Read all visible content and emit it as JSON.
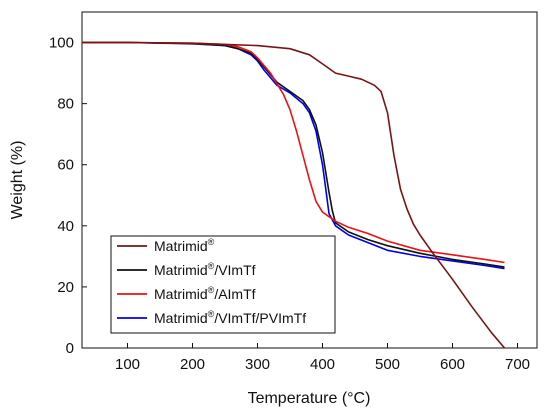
{
  "chart_data": {
    "type": "line",
    "xlabel": "Temperature (°C)",
    "ylabel": "Weight (%)",
    "xlim": [
      30,
      730
    ],
    "ylim": [
      0,
      110
    ],
    "xticks": [
      100,
      200,
      300,
      400,
      500,
      600,
      700
    ],
    "yticks": [
      0,
      20,
      40,
      60,
      80,
      100
    ],
    "grid": false,
    "legend_position": "bottom-left",
    "series": [
      {
        "name": "Matrimid®/VImTf/PVImTf",
        "legend_parts": [
          "Matrimid",
          "®",
          "/VImTf/PVImTf"
        ],
        "color": "#0000ee",
        "x": [
          30,
          100,
          200,
          250,
          270,
          290,
          300,
          310,
          330,
          350,
          370,
          380,
          390,
          400,
          405,
          410,
          420,
          440,
          470,
          500,
          550,
          600,
          650,
          680
        ],
        "y": [
          100,
          100,
          99.6,
          99,
          98,
          96,
          94,
          91,
          86,
          83.5,
          80,
          77,
          71,
          60,
          52,
          44,
          40,
          37,
          34.5,
          32,
          30,
          28.5,
          27,
          26
        ]
      },
      {
        "name": "Matrimid®/VImTf",
        "legend_parts": [
          "Matrimid",
          "®",
          "/VImTf"
        ],
        "color": "#111111",
        "x": [
          30,
          100,
          200,
          250,
          270,
          290,
          300,
          310,
          330,
          350,
          370,
          380,
          390,
          400,
          410,
          415,
          420,
          440,
          470,
          500,
          550,
          600,
          650,
          680
        ],
        "y": [
          100,
          100,
          99.7,
          99,
          98,
          96.5,
          94.5,
          92,
          87,
          84,
          81,
          78,
          73,
          64,
          51,
          45,
          41,
          38,
          35.5,
          33.5,
          31,
          29,
          27.5,
          26.5
        ]
      },
      {
        "name": "Matrimid®/AImTf",
        "legend_parts": [
          "Matrimid",
          "®",
          "/AImTf"
        ],
        "color": "#ee1111",
        "x": [
          30,
          100,
          200,
          250,
          270,
          290,
          300,
          310,
          320,
          340,
          350,
          360,
          370,
          380,
          390,
          400,
          420,
          440,
          470,
          500,
          550,
          600,
          650,
          680
        ],
        "y": [
          100,
          100,
          99.8,
          99.4,
          98.6,
          97,
          95,
          92.5,
          90,
          83,
          78,
          71,
          63,
          55,
          48,
          44.5,
          41.5,
          39.5,
          37.5,
          35,
          32,
          30.5,
          29,
          28
        ]
      },
      {
        "name": "Matrimid®",
        "legend_parts": [
          "Matrimid",
          "®",
          ""
        ],
        "color": "#7a1414",
        "x": [
          30,
          100,
          200,
          300,
          350,
          380,
          400,
          420,
          440,
          460,
          480,
          490,
          500,
          510,
          520,
          530,
          540,
          550,
          570,
          600,
          630,
          660,
          680
        ],
        "y": [
          100,
          100,
          99.8,
          99,
          98,
          96,
          93,
          90,
          89,
          88,
          86,
          84,
          77,
          63,
          52,
          45.5,
          40.5,
          37,
          31,
          22.5,
          13.5,
          5,
          0
        ]
      }
    ]
  }
}
